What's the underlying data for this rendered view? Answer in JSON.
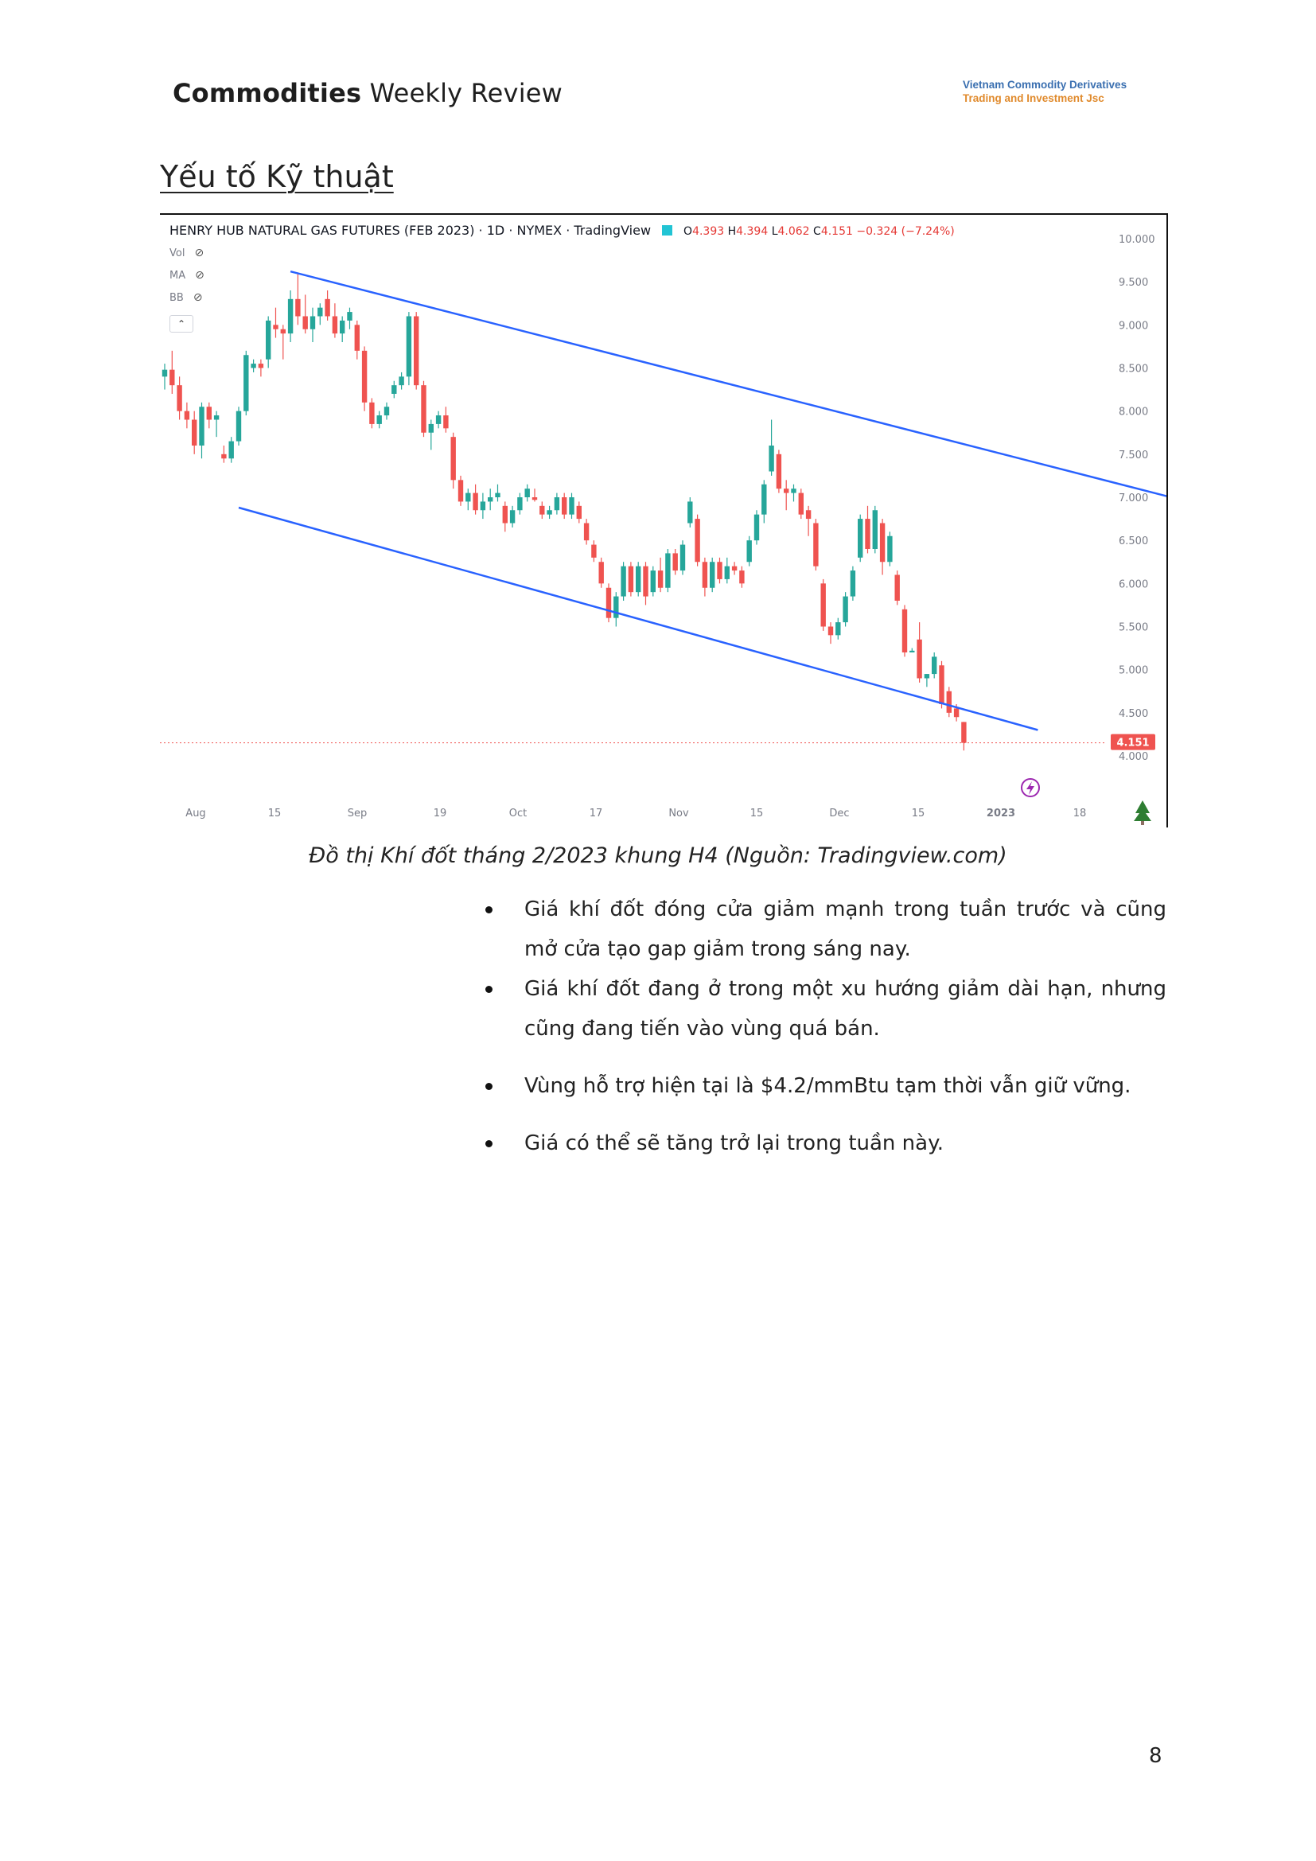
{
  "header": {
    "title_bold": "Commodities",
    "title_rest": " Weekly Review",
    "company_line1": "Vietnam Commodity Derivatives",
    "company_line2": "Trading and Investment Jsc"
  },
  "section_title": "Yếu tố Kỹ thuật",
  "chart": {
    "legend_title": "HENRY HUB NATURAL GAS FUTURES (FEB 2023) · 1D · NYMEX · TradingView",
    "ohlc": {
      "o_label": "O",
      "o": "4.393",
      "h_label": "H",
      "h": "4.394",
      "l_label": "L",
      "l": "4.062",
      "c_label": "C",
      "c": "4.151",
      "change": "−0.324 (−7.24%)"
    },
    "indicators": [
      "Vol",
      "MA",
      "BB"
    ],
    "collapse_icon": "chevron-up-icon",
    "last_price_label": "4.151",
    "colors": {
      "up": "#26a69a",
      "down": "#ef5350",
      "channel": "#2962ff",
      "price_line": "#ef5350"
    }
  },
  "chart_data": {
    "type": "candlestick",
    "title": "HENRY HUB NATURAL GAS FUTURES (FEB 2023) · 1D · NYMEX · TradingView",
    "y_ticks": [
      "10.000",
      "9.500",
      "9.000",
      "8.500",
      "8.000",
      "7.500",
      "7.000",
      "6.500",
      "6.000",
      "5.500",
      "5.000",
      "4.500",
      "4.000"
    ],
    "ylim": [
      3.95,
      10.2
    ],
    "x_ticks": [
      "Aug",
      "15",
      "Sep",
      "19",
      "Oct",
      "17",
      "Nov",
      "15",
      "Dec",
      "15",
      "2023",
      "18"
    ],
    "last_price": 4.151,
    "ohlc": [
      [
        8.4,
        8.55,
        8.25,
        8.48
      ],
      [
        8.48,
        8.7,
        8.2,
        8.3
      ],
      [
        8.3,
        8.4,
        7.9,
        8.0
      ],
      [
        8.0,
        8.1,
        7.8,
        7.9
      ],
      [
        7.9,
        8.0,
        7.5,
        7.6
      ],
      [
        7.6,
        8.1,
        7.45,
        8.05
      ],
      [
        8.05,
        8.1,
        7.8,
        7.9
      ],
      [
        7.9,
        8.0,
        7.7,
        7.95
      ],
      [
        7.5,
        7.6,
        7.4,
        7.45
      ],
      [
        7.45,
        7.7,
        7.4,
        7.65
      ],
      [
        7.65,
        8.05,
        7.6,
        8.0
      ],
      [
        8.0,
        8.7,
        7.95,
        8.65
      ],
      [
        8.5,
        8.6,
        8.45,
        8.55
      ],
      [
        8.55,
        8.6,
        8.4,
        8.5
      ],
      [
        8.6,
        9.1,
        8.5,
        9.05
      ],
      [
        9.0,
        9.2,
        8.85,
        8.95
      ],
      [
        8.95,
        9.0,
        8.6,
        8.9
      ],
      [
        8.9,
        9.4,
        8.8,
        9.3
      ],
      [
        9.3,
        9.6,
        9.0,
        9.1
      ],
      [
        9.1,
        9.35,
        8.9,
        8.95
      ],
      [
        8.95,
        9.2,
        8.8,
        9.1
      ],
      [
        9.1,
        9.25,
        9.0,
        9.2
      ],
      [
        9.3,
        9.4,
        9.05,
        9.1
      ],
      [
        9.1,
        9.25,
        8.85,
        8.9
      ],
      [
        8.9,
        9.1,
        8.8,
        9.05
      ],
      [
        9.05,
        9.2,
        8.95,
        9.15
      ],
      [
        9.0,
        9.05,
        8.6,
        8.7
      ],
      [
        8.7,
        8.75,
        8.0,
        8.1
      ],
      [
        8.1,
        8.15,
        7.8,
        7.85
      ],
      [
        7.85,
        8.0,
        7.8,
        7.95
      ],
      [
        7.95,
        8.1,
        7.9,
        8.05
      ],
      [
        8.2,
        8.35,
        8.15,
        8.3
      ],
      [
        8.3,
        8.45,
        8.25,
        8.4
      ],
      [
        8.4,
        9.15,
        8.3,
        9.1
      ],
      [
        9.1,
        9.15,
        8.25,
        8.3
      ],
      [
        8.3,
        8.35,
        7.7,
        7.75
      ],
      [
        7.75,
        7.9,
        7.55,
        7.85
      ],
      [
        7.85,
        8.0,
        7.8,
        7.95
      ],
      [
        7.95,
        8.05,
        7.75,
        7.8
      ],
      [
        7.7,
        7.75,
        7.1,
        7.2
      ],
      [
        7.2,
        7.25,
        6.9,
        6.95
      ],
      [
        6.95,
        7.1,
        6.85,
        7.05
      ],
      [
        7.05,
        7.15,
        6.8,
        6.85
      ],
      [
        6.85,
        7.05,
        6.75,
        6.95
      ],
      [
        6.95,
        7.1,
        6.85,
        7.0
      ],
      [
        7.0,
        7.15,
        6.95,
        7.05
      ],
      [
        6.9,
        6.95,
        6.6,
        6.7
      ],
      [
        6.7,
        6.9,
        6.65,
        6.85
      ],
      [
        6.85,
        7.05,
        6.8,
        7.0
      ],
      [
        7.0,
        7.15,
        6.95,
        7.1
      ],
      [
        7.0,
        7.1,
        6.95,
        6.97
      ],
      [
        6.9,
        6.95,
        6.75,
        6.8
      ],
      [
        6.8,
        6.9,
        6.75,
        6.85
      ],
      [
        6.85,
        7.05,
        6.8,
        7.0
      ],
      [
        7.0,
        7.05,
        6.75,
        6.8
      ],
      [
        6.8,
        7.05,
        6.75,
        7.0
      ],
      [
        6.9,
        6.95,
        6.7,
        6.75
      ],
      [
        6.7,
        6.75,
        6.45,
        6.5
      ],
      [
        6.45,
        6.5,
        6.25,
        6.3
      ],
      [
        6.25,
        6.3,
        5.95,
        6.0
      ],
      [
        5.95,
        6.0,
        5.55,
        5.6
      ],
      [
        5.6,
        5.9,
        5.5,
        5.85
      ],
      [
        5.85,
        6.25,
        5.8,
        6.2
      ],
      [
        6.2,
        6.25,
        5.85,
        5.9
      ],
      [
        5.9,
        6.25,
        5.85,
        6.2
      ],
      [
        6.2,
        6.25,
        5.75,
        5.85
      ],
      [
        5.9,
        6.2,
        5.85,
        6.15
      ],
      [
        6.15,
        6.3,
        5.9,
        5.95
      ],
      [
        5.95,
        6.4,
        5.9,
        6.35
      ],
      [
        6.35,
        6.4,
        6.1,
        6.15
      ],
      [
        6.15,
        6.5,
        6.1,
        6.45
      ],
      [
        6.7,
        7.0,
        6.65,
        6.95
      ],
      [
        6.75,
        6.8,
        6.2,
        6.25
      ],
      [
        6.25,
        6.3,
        5.85,
        5.95
      ],
      [
        5.95,
        6.3,
        5.9,
        6.25
      ],
      [
        6.25,
        6.3,
        6.0,
        6.05
      ],
      [
        6.05,
        6.3,
        6.0,
        6.2
      ],
      [
        6.2,
        6.25,
        6.1,
        6.15
      ],
      [
        6.15,
        6.2,
        5.95,
        6.0
      ],
      [
        6.25,
        6.55,
        6.2,
        6.5
      ],
      [
        6.5,
        6.85,
        6.45,
        6.8
      ],
      [
        6.8,
        7.2,
        6.7,
        7.15
      ],
      [
        7.3,
        7.9,
        7.25,
        7.6
      ],
      [
        7.5,
        7.55,
        7.05,
        7.1
      ],
      [
        7.1,
        7.2,
        6.85,
        7.05
      ],
      [
        7.05,
        7.15,
        6.95,
        7.1
      ],
      [
        7.05,
        7.1,
        6.75,
        6.8
      ],
      [
        6.85,
        6.9,
        6.55,
        6.75
      ],
      [
        6.7,
        6.75,
        6.15,
        6.2
      ],
      [
        6.0,
        6.05,
        5.45,
        5.5
      ],
      [
        5.5,
        5.55,
        5.3,
        5.4
      ],
      [
        5.4,
        5.6,
        5.35,
        5.55
      ],
      [
        5.55,
        5.9,
        5.5,
        5.85
      ],
      [
        5.85,
        6.2,
        5.8,
        6.15
      ],
      [
        6.3,
        6.8,
        6.25,
        6.75
      ],
      [
        6.75,
        6.9,
        6.35,
        6.4
      ],
      [
        6.4,
        6.9,
        6.35,
        6.85
      ],
      [
        6.7,
        6.75,
        6.1,
        6.25
      ],
      [
        6.25,
        6.6,
        6.2,
        6.55
      ],
      [
        6.1,
        6.15,
        5.75,
        5.8
      ],
      [
        5.7,
        5.75,
        5.15,
        5.2
      ],
      [
        5.2,
        5.25,
        5.2,
        5.22
      ],
      [
        5.35,
        5.55,
        4.85,
        4.9
      ],
      [
        4.9,
        4.95,
        4.8,
        4.95
      ],
      [
        4.95,
        5.2,
        4.9,
        5.15
      ],
      [
        5.05,
        5.1,
        4.55,
        4.6
      ],
      [
        4.75,
        4.8,
        4.45,
        4.5
      ],
      [
        4.55,
        4.6,
        4.4,
        4.45
      ],
      [
        4.393,
        4.394,
        4.062,
        4.151
      ]
    ],
    "channel_upper": {
      "from_index": 17,
      "from_price": 9.62,
      "to_index": 136,
      "to_price": 7.0
    },
    "channel_lower": {
      "from_index": 10,
      "from_price": 6.88,
      "to_index": 118,
      "to_price": 4.3
    },
    "grid": false
  },
  "caption": "Đồ thị Khí đốt tháng 2/2023 khung H4 (Nguồn: Tradingview.com)",
  "bullets": [
    "Giá khí đốt đóng cửa giảm mạnh trong tuần trước và cũng mở cửa tạo gap giảm trong sáng nay.",
    "Giá khí đốt đang ở trong một xu hướng giảm dài hạn, nhưng cũng đang tiến vào vùng quá bán.",
    "Vùng hỗ trợ hiện tại là $4.2/mmBtu tạm thời vẫn giữ vững.",
    "Giá có thể sẽ tăng trở lại trong tuần này."
  ],
  "page_number": "8"
}
